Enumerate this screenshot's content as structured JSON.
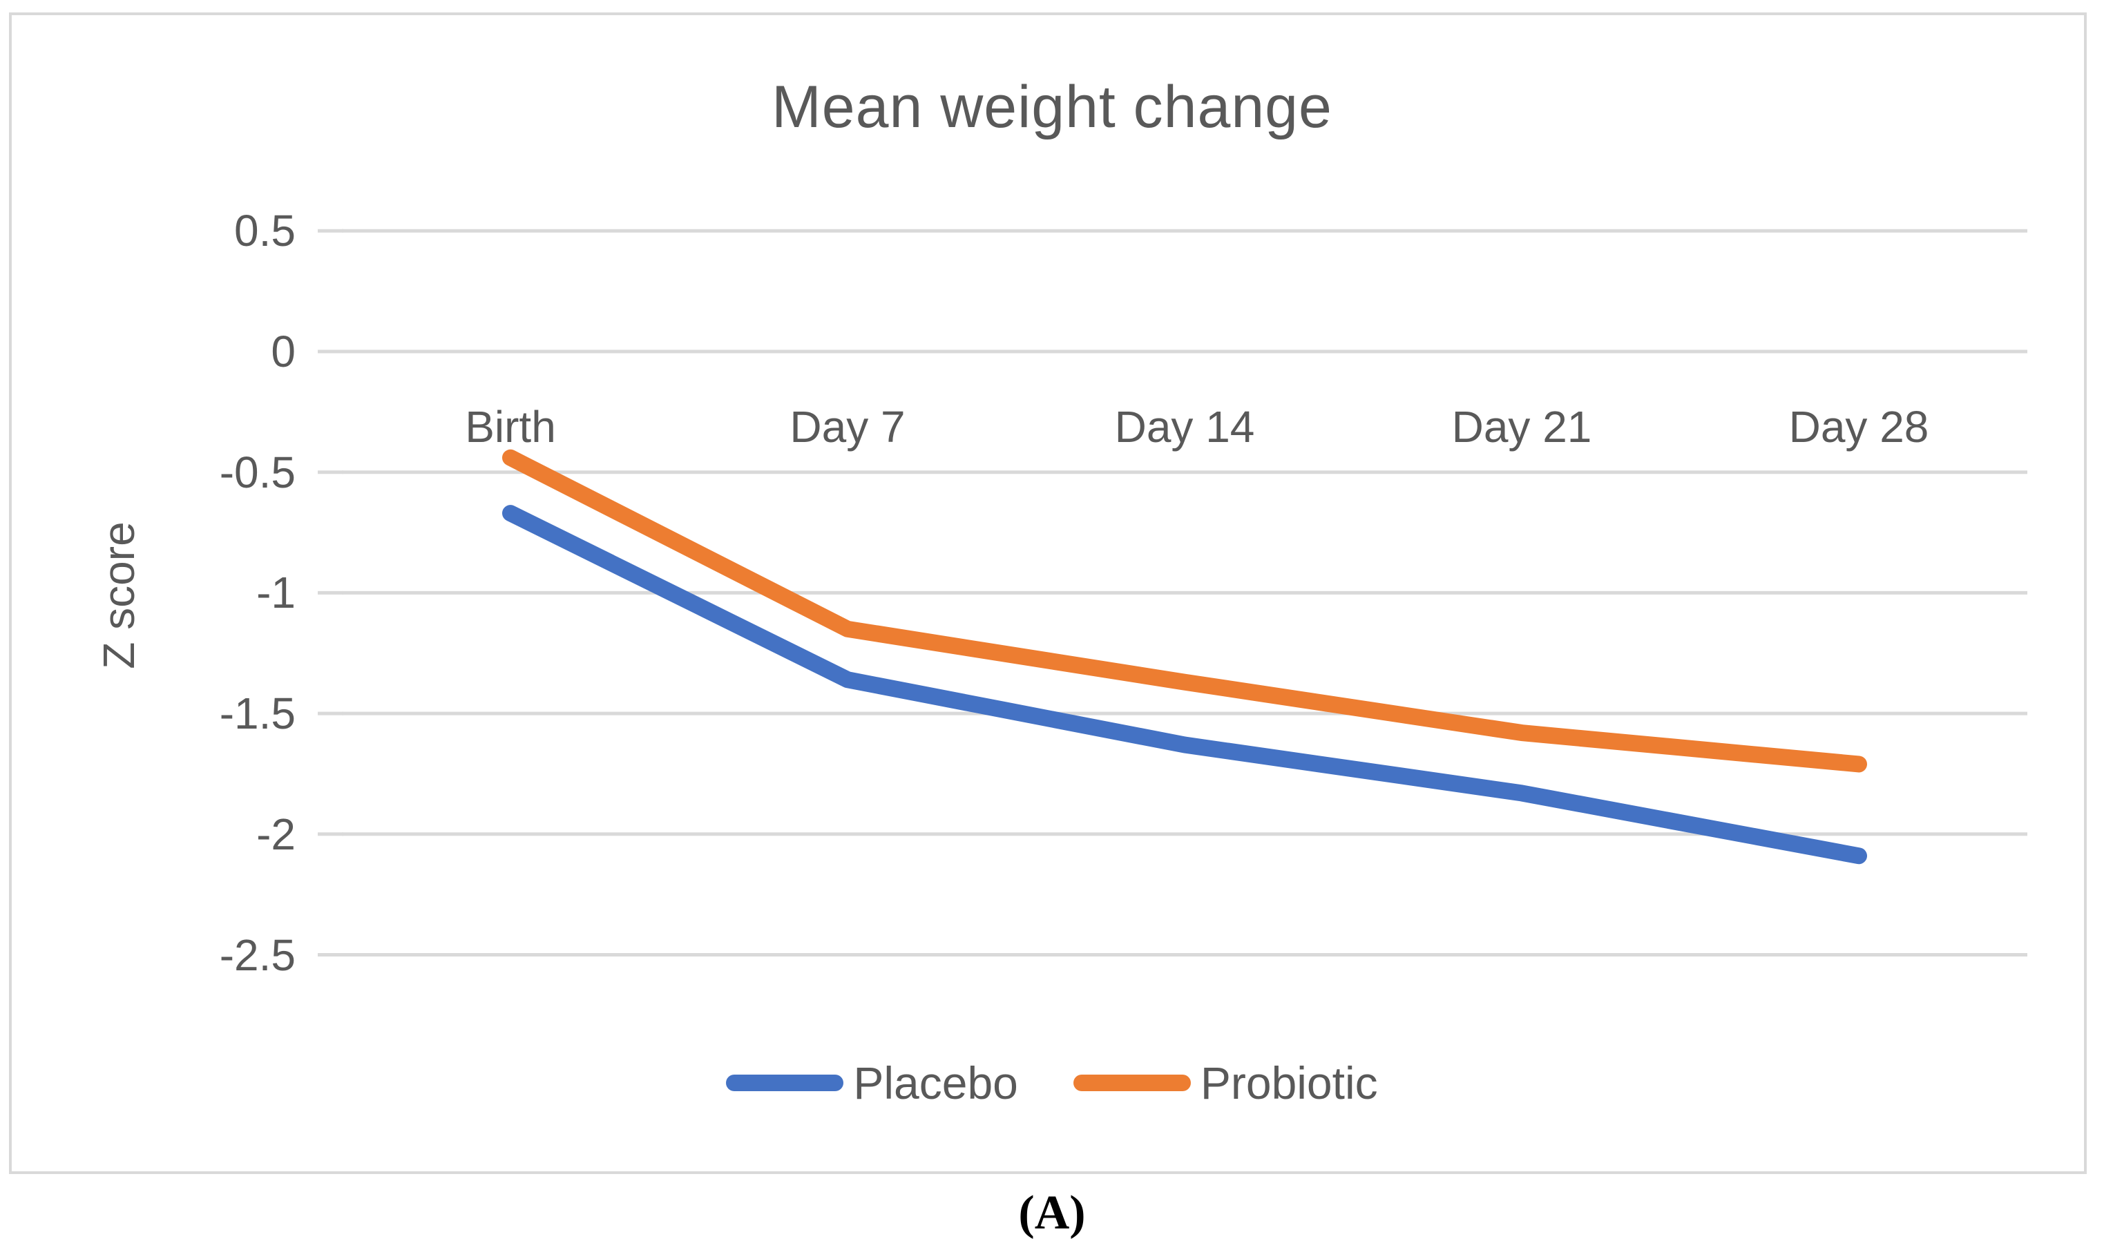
{
  "figure": {
    "caption": "(A)"
  },
  "chart_data": {
    "type": "line",
    "title": "Mean weight change",
    "xlabel": "",
    "ylabel": "Z score",
    "categories": [
      "Birth",
      "Day 7",
      "Day 14",
      "Day 21",
      "Day 28"
    ],
    "series": [
      {
        "name": "Placebo",
        "color": "#4472C4",
        "values": [
          -0.67,
          -1.36,
          -1.63,
          -1.83,
          -2.09
        ]
      },
      {
        "name": "Probiotic",
        "color": "#ED7D31",
        "values": [
          -0.44,
          -1.15,
          -1.37,
          -1.58,
          -1.71
        ]
      }
    ],
    "y_ticks": [
      0.5,
      0,
      -0.5,
      -1,
      -1.5,
      -2,
      -2.5
    ],
    "ylim": [
      -2.5,
      0.5
    ],
    "grid": true,
    "legend_position": "bottom",
    "colors": {
      "gridline": "#D9D9D9",
      "frame_border": "#D9D9D9",
      "axis_text": "#595959",
      "title_text": "#595959",
      "caption_text": "#000000"
    }
  }
}
